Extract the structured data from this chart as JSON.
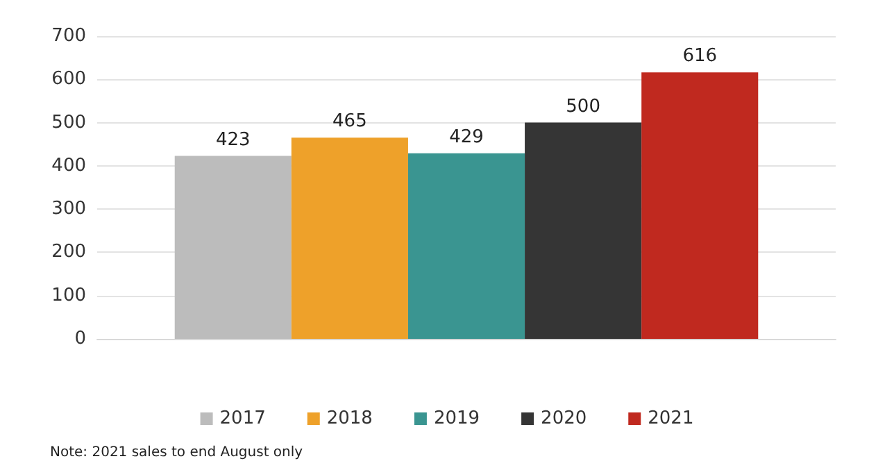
{
  "chart_data": {
    "type": "bar",
    "categories": [
      null
    ],
    "series": [
      {
        "name": "2017",
        "color": "#bcbcbc",
        "values": [
          423
        ]
      },
      {
        "name": "2018",
        "color": "#eea12a",
        "values": [
          465
        ]
      },
      {
        "name": "2019",
        "color": "#3a9591",
        "values": [
          429
        ]
      },
      {
        "name": "2020",
        "color": "#353535",
        "values": [
          500
        ]
      },
      {
        "name": "2021",
        "color": "#c0291f",
        "values": [
          616
        ]
      }
    ],
    "ylim": [
      0,
      700
    ],
    "yticks": [
      0,
      100,
      200,
      300,
      400,
      500,
      600,
      700
    ],
    "grid": "y",
    "legend": "bottom",
    "data_labels": true,
    "annotations": [
      "Note: 2021 sales to end August only"
    ]
  }
}
